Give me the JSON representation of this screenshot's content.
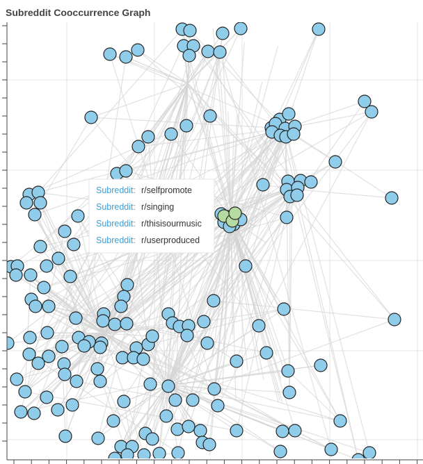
{
  "title": "Subreddit Cooccurrence Graph",
  "tooltip": {
    "rows": [
      {
        "label": "Subreddit:",
        "value": "r/selfpromote"
      },
      {
        "label": "Subreddit:",
        "value": "r/singing"
      },
      {
        "label": "Subreddit:",
        "value": "r/thisisourmusic"
      },
      {
        "label": "Subreddit:",
        "value": "r/userproduced"
      }
    ]
  }
}
